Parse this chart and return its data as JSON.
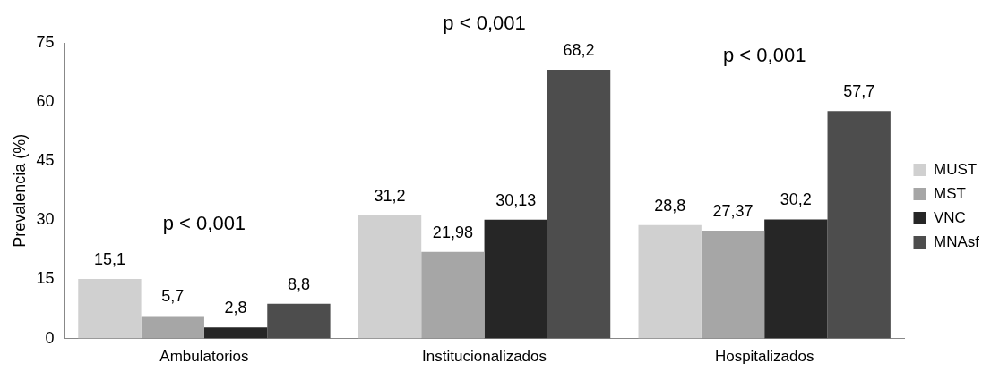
{
  "chart_data": {
    "type": "bar",
    "ylabel": "Prevalencia (%)",
    "categories": [
      "Ambulatorios",
      "Institucionalizados",
      "Hospitalizados"
    ],
    "series": [
      {
        "name": "MUST",
        "color": "#d0d0d0",
        "values": [
          15.1,
          31.2,
          28.8
        ],
        "value_labels": [
          "15,1",
          "31,2",
          "28,8"
        ]
      },
      {
        "name": "MST",
        "color": "#a6a6a6",
        "values": [
          5.7,
          21.98,
          27.37
        ],
        "value_labels": [
          "5,7",
          "21,98",
          "27,37"
        ]
      },
      {
        "name": "VNC",
        "color": "#262626",
        "values": [
          2.8,
          30.13,
          30.2
        ],
        "value_labels": [
          "2,8",
          "30,13",
          "30,2"
        ]
      },
      {
        "name": "MNAsf",
        "color": "#4d4d4d",
        "values": [
          8.8,
          68.2,
          57.7
        ],
        "value_labels": [
          "8,8",
          "68,2",
          "57,7"
        ]
      }
    ],
    "ylim": [
      0,
      75
    ],
    "yticks": [
      0,
      15,
      30,
      45,
      60,
      75
    ],
    "grid": false,
    "legend": "right",
    "annotations": [
      "p < 0,001",
      "p < 0,001",
      "p < 0,001"
    ]
  }
}
